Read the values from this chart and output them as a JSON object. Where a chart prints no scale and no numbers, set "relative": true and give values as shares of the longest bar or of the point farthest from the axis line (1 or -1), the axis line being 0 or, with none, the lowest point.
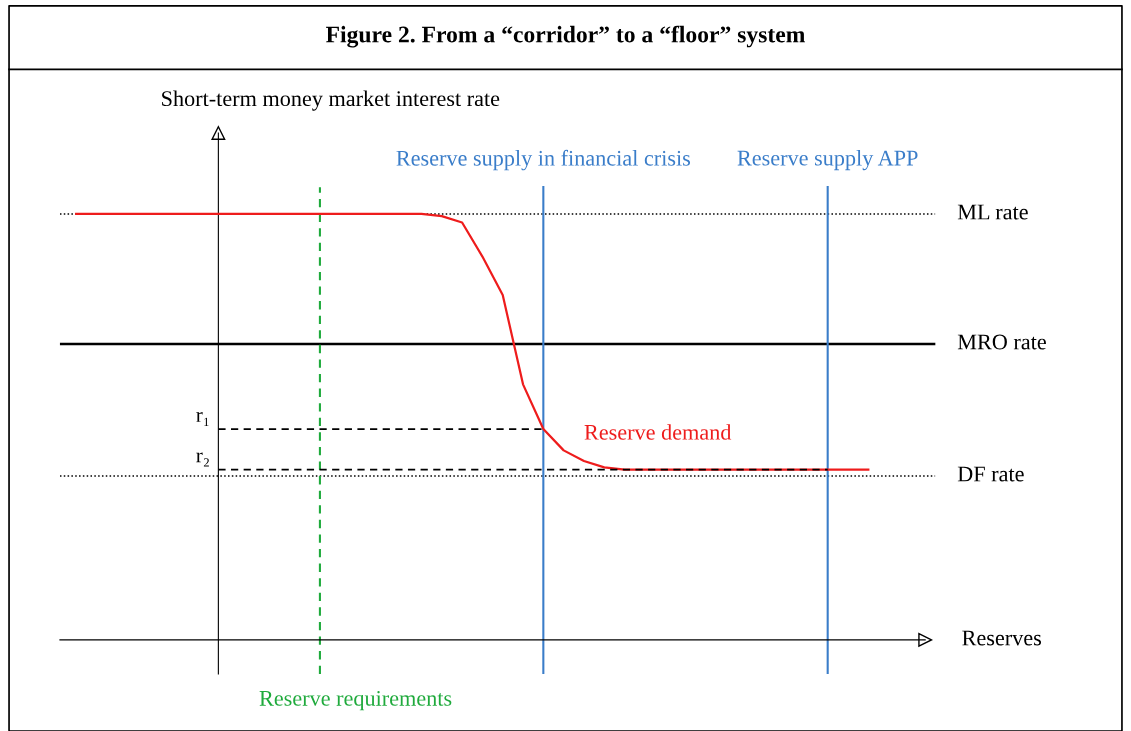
{
  "chart_data": {
    "type": "line",
    "title": "Figure 2. From a “corridor” to a “floor” system",
    "xlabel": "Reserves",
    "ylabel": "Short-term money market interest rate",
    "relative": true,
    "legend": false,
    "categories": [
      null,
      null,
      null,
      null,
      null,
      null,
      null,
      null,
      null,
      null,
      null,
      null,
      null,
      null,
      null,
      null,
      null,
      null,
      null,
      null,
      null,
      null,
      null,
      null,
      null,
      null,
      null,
      null,
      null,
      null,
      null,
      null,
      null,
      null,
      null,
      null,
      null,
      null,
      null,
      null
    ],
    "series": [
      {
        "name": "Reserve demand",
        "color": "#ee1c1c",
        "line_style": "solid",
        "values": [
          1.0,
          1.0,
          1.0,
          1.0,
          1.0,
          1.0,
          1.0,
          1.0,
          1.0,
          1.0,
          1.0,
          1.0,
          1.0,
          1.0,
          1.0,
          1.0,
          1.0,
          1.0,
          0.995,
          0.98,
          0.9,
          0.81,
          0.6,
          0.495,
          0.445,
          0.42,
          0.405,
          0.4,
          0.4,
          0.4,
          0.4,
          0.4,
          0.4,
          0.4,
          0.4,
          0.4,
          0.4,
          0.4,
          0.4,
          0.4
        ]
      },
      {
        "name": "r₁",
        "color": "#000000",
        "line_style": "dashed",
        "values": [
          null,
          null,
          null,
          null,
          null,
          null,
          null,
          0.495,
          0.495,
          0.495,
          0.495,
          0.495,
          0.495,
          0.495,
          0.495,
          0.495,
          0.495,
          0.495,
          0.495,
          0.495,
          0.495,
          0.495,
          0.495,
          0.495,
          null,
          null,
          null,
          null,
          null,
          null,
          null,
          null,
          null,
          null,
          null,
          null,
          null,
          null,
          null,
          null
        ]
      },
      {
        "name": "r₂",
        "color": "#000000",
        "line_style": "dashed",
        "values": [
          null,
          null,
          null,
          null,
          null,
          null,
          null,
          0.4,
          0.4,
          0.4,
          0.4,
          0.4,
          0.4,
          0.4,
          0.4,
          0.4,
          0.4,
          0.4,
          0.4,
          0.4,
          0.4,
          0.4,
          0.4,
          0.4,
          0.4,
          0.4,
          0.4,
          0.4,
          0.4,
          0.4,
          0.4,
          0.4,
          0.4,
          0.4,
          0.4,
          0.4,
          0.4,
          0.4,
          null,
          null
        ]
      }
    ],
    "ref_lines": [
      {
        "axis": "y",
        "value": 1.0,
        "label": "ML rate",
        "color": "#000000",
        "line_style": "dotted"
      },
      {
        "axis": "y",
        "value": 0.695,
        "label": "MRO rate",
        "color": "#000000",
        "line_style": "solid"
      },
      {
        "axis": "y",
        "value": 0.385,
        "label": "DF rate",
        "color": "#000000",
        "line_style": "dotted"
      }
    ],
    "annotations": [
      "Reserve requirements",
      "Reserve supply in financial crisis",
      "Reserve supply APP"
    ]
  }
}
